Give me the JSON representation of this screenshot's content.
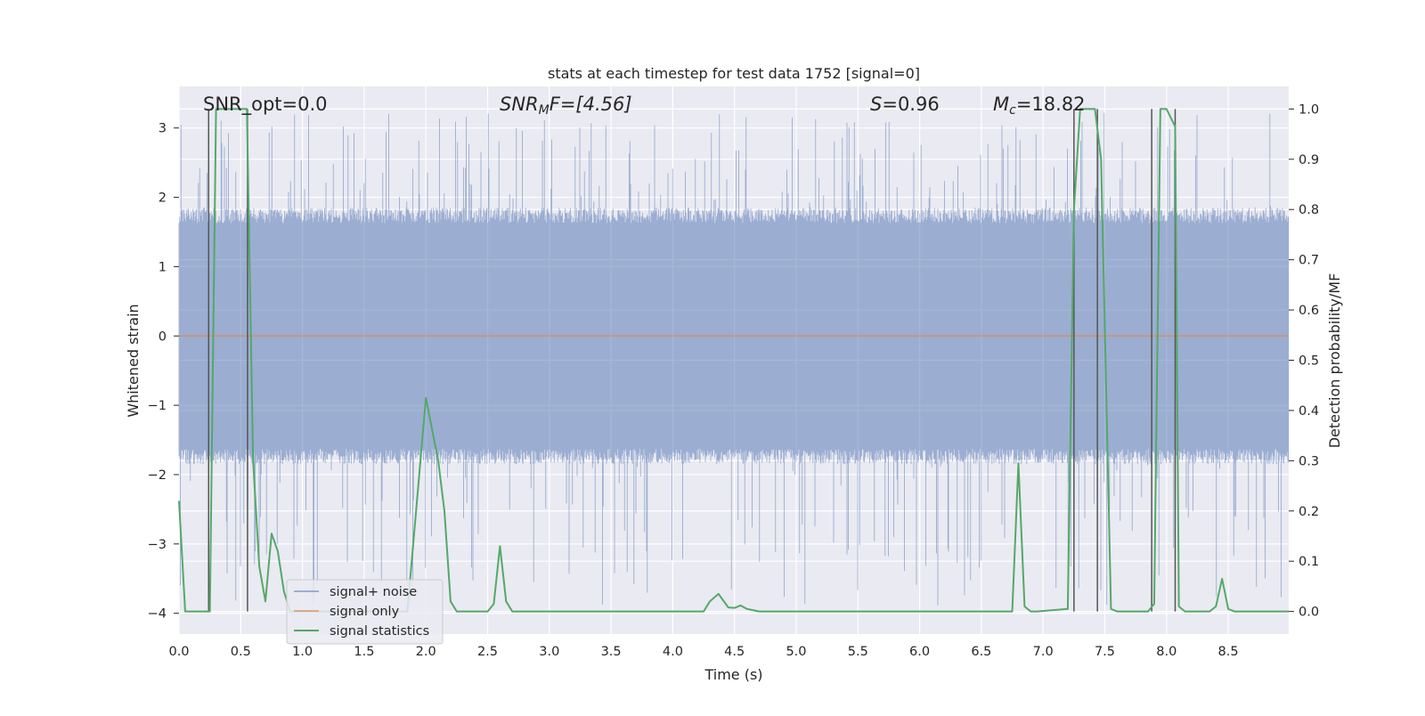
{
  "chart_data": {
    "type": "line",
    "title": "stats at each timestep for test data 1752 [signal=0]",
    "xlabel": "Time (s)",
    "ylabel_left": "Whitened strain",
    "ylabel_right": "Detection probability/MF",
    "xlim": [
      0.0,
      8.99
    ],
    "ylim_left": [
      -4.3,
      3.6
    ],
    "ylim_right": [
      -0.045,
      1.045
    ],
    "xticks": [
      "0.0",
      "0.5",
      "1.0",
      "1.5",
      "2.0",
      "2.5",
      "3.0",
      "3.5",
      "4.0",
      "4.5",
      "5.0",
      "5.5",
      "6.0",
      "6.5",
      "7.0",
      "7.5",
      "8.0",
      "8.5"
    ],
    "yticks_left": [
      "3",
      "2",
      "1",
      "0",
      "−1",
      "−2",
      "−3",
      "−4"
    ],
    "yticks_right": [
      "1.0",
      "0.9",
      "0.8",
      "0.7",
      "0.6",
      "0.5",
      "0.4",
      "0.3",
      "0.2",
      "0.1",
      "0.0"
    ],
    "grid": true,
    "legend_position": "lower-left",
    "colors": {
      "signal_noise": "#4c72b0",
      "signal_only": "#dd8452",
      "signal_statistics": "#55a868",
      "marker_lines": "#555555",
      "plot_background": "#eaeaf2",
      "grid": "#ffffff"
    },
    "annotations": {
      "snr_opt": "SNR_opt=0.0",
      "snr_mf_main": "SNR",
      "snr_mf_sub": "M",
      "snr_mf_rest": "F=[4.56]",
      "s_main": "S",
      "s_rest": "=0.96",
      "mc_main": "M",
      "mc_sub": "c",
      "mc_rest": "=18.82"
    },
    "series": [
      {
        "name": "signal+ noise",
        "axis": "left",
        "style": "noise band",
        "typical_range": [
          -1.85,
          1.85
        ],
        "peak_range": [
          -3.9,
          3.25
        ]
      },
      {
        "name": "signal only",
        "axis": "left",
        "x": [
          0.0,
          8.99
        ],
        "y": [
          0.0,
          0.0
        ]
      },
      {
        "name": "signal statistics",
        "axis": "right",
        "x": [
          0.0,
          0.05,
          0.25,
          0.3,
          0.55,
          0.6,
          0.65,
          0.7,
          0.75,
          0.8,
          0.85,
          0.9,
          0.95,
          1.0,
          1.85,
          2.0,
          2.1,
          2.15,
          2.2,
          2.25,
          2.5,
          2.55,
          2.6,
          2.65,
          2.7,
          2.75,
          4.25,
          4.3,
          4.37,
          4.45,
          4.5,
          4.55,
          4.6,
          4.7,
          6.75,
          6.8,
          6.85,
          6.9,
          6.95,
          7.2,
          7.25,
          7.3,
          7.42,
          7.47,
          7.55,
          7.6,
          7.85,
          7.9,
          7.95,
          8.0,
          8.07,
          8.1,
          8.15,
          8.35,
          8.4,
          8.45,
          8.5,
          8.55,
          8.6,
          8.99
        ],
        "y": [
          0.22,
          0.0,
          0.0,
          1.0,
          1.0,
          0.3,
          0.09,
          0.02,
          0.155,
          0.12,
          0.04,
          0.0,
          0.0,
          0.0,
          0.0,
          0.425,
          0.3,
          0.2,
          0.02,
          0.0,
          0.0,
          0.015,
          0.13,
          0.02,
          0.0,
          0.0,
          0.0,
          0.02,
          0.035,
          0.008,
          0.007,
          0.012,
          0.005,
          0.0,
          0.0,
          0.295,
          0.01,
          0.0,
          0.0,
          0.005,
          0.8,
          1.0,
          1.0,
          0.9,
          0.005,
          0.0,
          0.0,
          0.015,
          1.0,
          1.0,
          0.965,
          0.01,
          0.0,
          0.0,
          0.01,
          0.065,
          0.005,
          0.0,
          0.0,
          0.0
        ]
      }
    ],
    "marker_lines_x": [
      0.24,
      0.555,
      7.25,
      7.44,
      7.88,
      8.07
    ]
  }
}
